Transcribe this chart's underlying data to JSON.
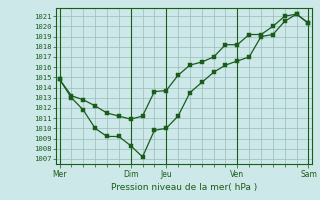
{
  "xlabel": "Pression niveau de la mer( hPa )",
  "bg_color": "#cce8e8",
  "grid_color": "#aacccc",
  "plot_bg": "#cce8e8",
  "line_color": "#1a5c1a",
  "ylim": [
    1006.5,
    1021.8
  ],
  "yticks": [
    1007,
    1008,
    1009,
    1010,
    1011,
    1012,
    1013,
    1014,
    1015,
    1016,
    1017,
    1018,
    1019,
    1020,
    1021
  ],
  "xlim": [
    -0.3,
    21.3
  ],
  "xtick_pos": [
    0,
    6,
    9,
    15,
    21
  ],
  "xtick_labels": [
    "Mer",
    "Dim",
    "Jeu",
    "Ven",
    "Sam"
  ],
  "vline_pos": [
    0,
    6,
    9,
    15,
    21
  ],
  "series1_x": [
    0,
    1,
    2,
    3,
    4,
    5,
    6,
    7,
    8,
    9,
    10,
    11,
    12,
    13,
    14,
    15,
    16,
    17,
    18,
    19,
    20,
    21
  ],
  "series1_y": [
    1014.8,
    1013.2,
    1012.8,
    1012.2,
    1011.5,
    1011.2,
    1010.9,
    1011.2,
    1013.6,
    1013.7,
    1015.2,
    1016.2,
    1016.5,
    1017.0,
    1018.2,
    1018.2,
    1019.2,
    1019.2,
    1020.0,
    1021.0,
    1021.2,
    1020.3
  ],
  "series2_x": [
    0,
    1,
    2,
    3,
    4,
    5,
    6,
    7,
    8,
    9,
    10,
    11,
    12,
    13,
    14,
    15,
    16,
    17,
    18,
    19,
    20,
    21
  ],
  "series2_y": [
    1014.8,
    1013.0,
    1011.8,
    1010.0,
    1009.2,
    1009.2,
    1008.3,
    1007.2,
    1009.8,
    1010.0,
    1011.2,
    1013.5,
    1014.5,
    1015.5,
    1016.2,
    1016.6,
    1017.0,
    1019.0,
    1019.2,
    1020.5,
    1021.2,
    1020.3
  ],
  "marker_size": 2.5,
  "line_width": 0.9,
  "ylabel_fontsize": 5.2,
  "xlabel_fontsize": 6.5,
  "xtick_fontsize": 5.5
}
